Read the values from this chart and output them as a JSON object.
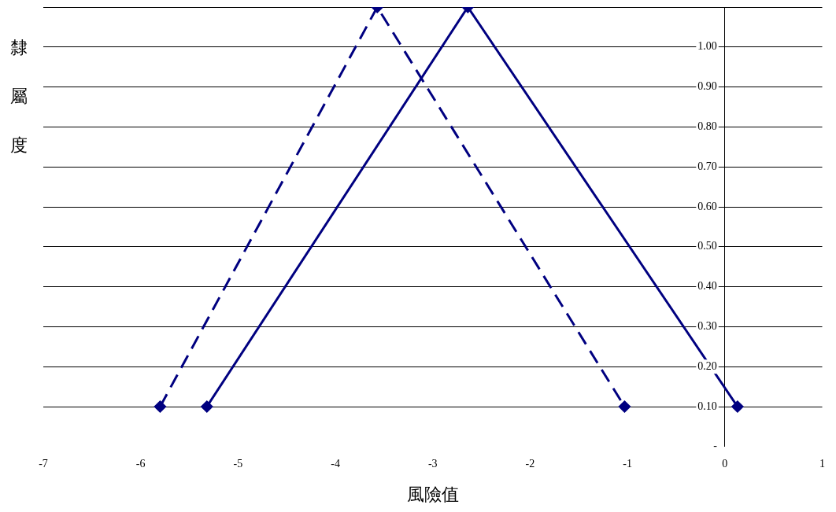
{
  "chart_data": {
    "type": "line",
    "xlabel": "風險值",
    "ylabel": "隸屬度",
    "xlim": [
      -7,
      1
    ],
    "xticks": [
      -7,
      -6,
      -5,
      -4,
      -3,
      -2,
      -1,
      0,
      1
    ],
    "ylim": [
      0,
      1.1
    ],
    "yticks": [
      {
        "value": 0,
        "label": "-"
      },
      {
        "value": 0.1,
        "label": "0.10"
      },
      {
        "value": 0.2,
        "label": "0.20"
      },
      {
        "value": 0.3,
        "label": "0.30"
      },
      {
        "value": 0.4,
        "label": "0.40"
      },
      {
        "value": 0.5,
        "label": "0.50"
      },
      {
        "value": 0.6,
        "label": "0.60"
      },
      {
        "value": 0.7,
        "label": "0.70"
      },
      {
        "value": 0.8,
        "label": "0.80"
      },
      {
        "value": 0.9,
        "label": "0.90"
      },
      {
        "value": 1.0,
        "label": "1.00"
      },
      {
        "value": 1.1,
        "label": null
      }
    ],
    "grid": "y",
    "legend": false,
    "marker": "diamond",
    "series": [
      {
        "color": "#000080",
        "line_style": "dashed",
        "x": [
          -5.8,
          -3.57,
          -1.03
        ],
        "values": [
          0.1,
          1.1,
          0.1
        ]
      },
      {
        "color": "#000080",
        "line_style": "solid",
        "x": [
          -5.32,
          -2.64,
          0.13
        ],
        "values": [
          0.1,
          1.1,
          0.1
        ]
      }
    ]
  }
}
